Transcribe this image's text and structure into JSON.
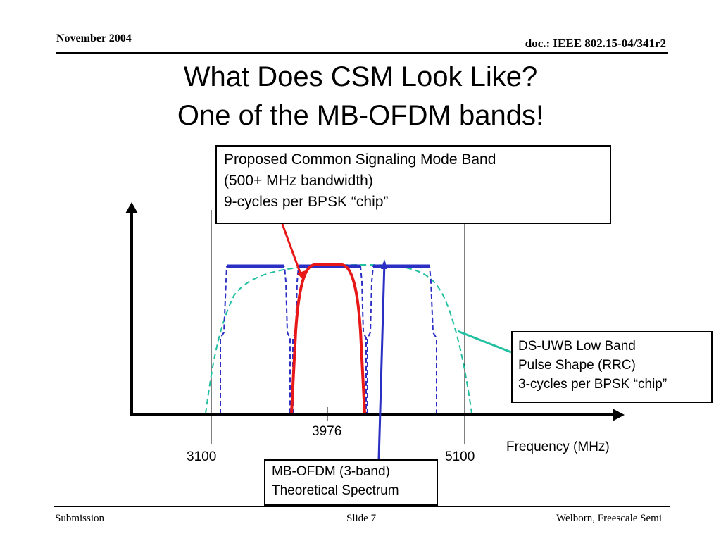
{
  "header": {
    "date": "November 2004",
    "doc_id": "doc.: IEEE 802.15-04/341r2"
  },
  "title": {
    "line1": "What Does CSM Look Like?",
    "line2": "One of the MB-OFDM bands!"
  },
  "callouts": {
    "csm": [
      "Proposed Common Signaling Mode Band",
      "(500+ MHz bandwidth)",
      "9-cycles per BPSK “chip”"
    ],
    "ds_uwb": [
      "DS-UWB Low Band",
      "Pulse Shape (RRC)",
      "3-cycles per BPSK “chip”"
    ],
    "mb_ofdm": [
      "MB-OFDM (3-band)",
      "Theoretical Spectrum"
    ]
  },
  "axis": {
    "x_label": "Frequency (MHz)",
    "ticks": [
      "3100",
      "3976",
      "5100"
    ]
  },
  "colors": {
    "mb_ofdm": "#2b2fc4",
    "csm": "#e81818",
    "ds_uwb": "#20c0a0",
    "callout_line": "#20c0a0"
  },
  "footer": {
    "left": "Submission",
    "center": "Slide 7",
    "right": "Welborn, Freescale Semi"
  }
}
